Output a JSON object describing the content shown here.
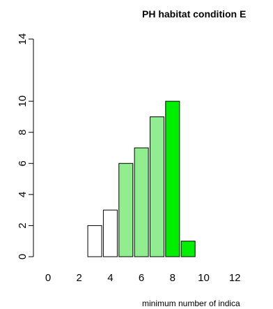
{
  "chart_data": {
    "type": "bar",
    "title": "PH habitat condition E",
    "xlabel": "minimum number of indica",
    "ylabel": "",
    "x_tick_labels": [
      "0",
      "2",
      "4",
      "6",
      "8",
      "10",
      "12"
    ],
    "y_tick_labels": [
      "0",
      "2",
      "4",
      "6",
      "8",
      "10",
      "14"
    ],
    "y_tick_values": [
      0,
      2,
      4,
      6,
      8,
      10,
      14
    ],
    "ylim": [
      0,
      14
    ],
    "categories": [
      0,
      1,
      2,
      3,
      4,
      5,
      6,
      7,
      8,
      9,
      10,
      11,
      12
    ],
    "values": [
      0,
      0,
      0,
      2,
      3,
      6,
      7,
      9,
      10,
      1,
      0,
      0,
      0
    ],
    "bar_colors": [
      "#ffffff",
      "#ffffff",
      "#ffffff",
      "#ffffff",
      "#ffffff",
      "#90ee90",
      "#90ee90",
      "#90ee90",
      "#00ee00",
      "#00ee00",
      "#ffffff",
      "#ffffff",
      "#ffffff"
    ],
    "grid": false,
    "legend": "none"
  }
}
